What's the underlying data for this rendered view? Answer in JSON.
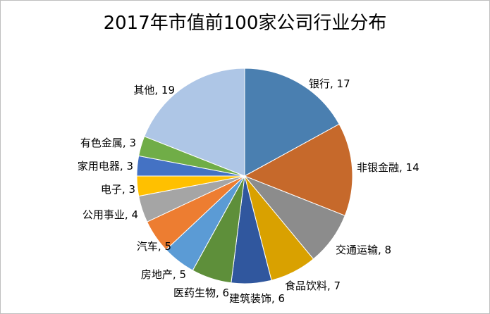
{
  "chart_data": {
    "type": "pie",
    "title": "2017年市值前100家公司行业分布",
    "slices": [
      {
        "label": "银行",
        "value": 17,
        "color": "#4a7fb0"
      },
      {
        "label": "非银金融",
        "value": 14,
        "color": "#c6692b"
      },
      {
        "label": "交通运输",
        "value": 8,
        "color": "#8c8c8c"
      },
      {
        "label": "食品饮料",
        "value": 7,
        "color": "#d9a100"
      },
      {
        "label": "建筑装饰",
        "value": 6,
        "color": "#30579e"
      },
      {
        "label": "医药生物",
        "value": 6,
        "color": "#5e8f3a"
      },
      {
        "label": "房地产",
        "value": 5,
        "color": "#5b9bd5"
      },
      {
        "label": "汽车",
        "value": 5,
        "color": "#ed7d31"
      },
      {
        "label": "公用事业",
        "value": 4,
        "color": "#a5a5a5"
      },
      {
        "label": "电子",
        "value": 3,
        "color": "#ffc000"
      },
      {
        "label": "家用电器",
        "value": 3,
        "color": "#4472c4"
      },
      {
        "label": "有色金属",
        "value": 3,
        "color": "#70ad47"
      },
      {
        "label": "其他",
        "value": 19,
        "color": "#aec6e6"
      }
    ],
    "legend": "none",
    "data_labels": "outside"
  }
}
